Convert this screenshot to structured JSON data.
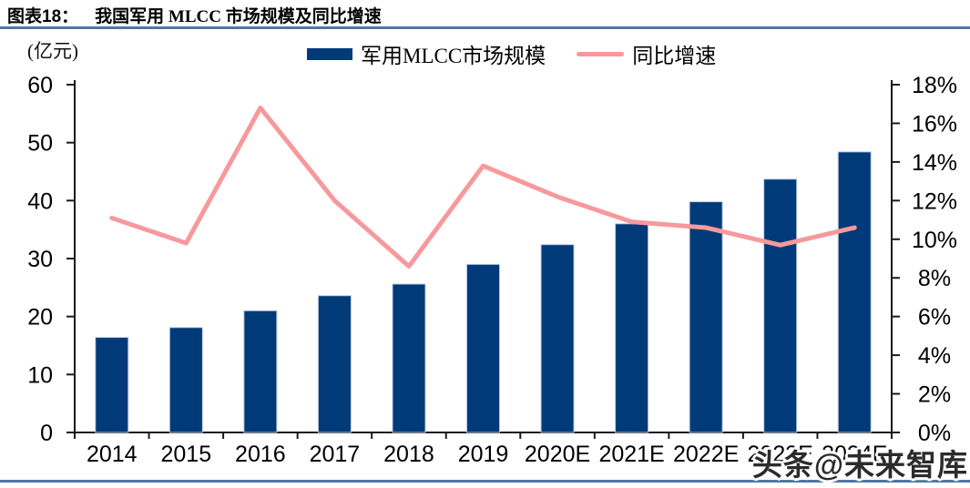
{
  "header": {
    "prefix": "图表18：",
    "title": "我国军用 MLCC 市场规模及同比增速"
  },
  "legend": {
    "bar_label": "军用MLCC市场规模",
    "line_label": "同比增速"
  },
  "unit_label": "(亿元)",
  "watermark": "头条@未来智库",
  "colors": {
    "bar": "#003A78",
    "bar_edge": "#BCC8DE",
    "line": "#F7999C",
    "rule": "#5276A3",
    "axis": "#1A1A1A",
    "text": "#000000"
  },
  "chart_data": {
    "type": "bar",
    "title": "我国军用 MLCC 市场规模及同比增速",
    "categories": [
      "2014",
      "2015",
      "2016",
      "2017",
      "2018",
      "2019",
      "2020E",
      "2021E",
      "2022E",
      "2023E",
      "2024E"
    ],
    "series": [
      {
        "name": "军用MLCC市场规模",
        "type": "bar",
        "axis": "left",
        "unit": "亿元",
        "values": [
          16.4,
          18.1,
          21.0,
          23.6,
          25.6,
          29.0,
          32.4,
          36.0,
          39.8,
          43.7,
          48.4
        ]
      },
      {
        "name": "同比增速",
        "type": "line",
        "axis": "right",
        "unit": "%",
        "values": [
          11.1,
          9.8,
          16.8,
          12.0,
          8.6,
          13.8,
          12.2,
          10.9,
          10.6,
          9.7,
          10.6
        ]
      }
    ],
    "left_axis": {
      "label": "(亿元)",
      "min": 0,
      "max": 60,
      "step": 10,
      "tick_labels": [
        "0",
        "10",
        "20",
        "30",
        "40",
        "50",
        "60"
      ]
    },
    "right_axis": {
      "min": 0,
      "max": 18,
      "step": 2,
      "tick_labels": [
        "0%",
        "2%",
        "4%",
        "6%",
        "8%",
        "10%",
        "12%",
        "14%",
        "16%",
        "18%"
      ]
    },
    "grid": false,
    "legend_position": "top"
  }
}
